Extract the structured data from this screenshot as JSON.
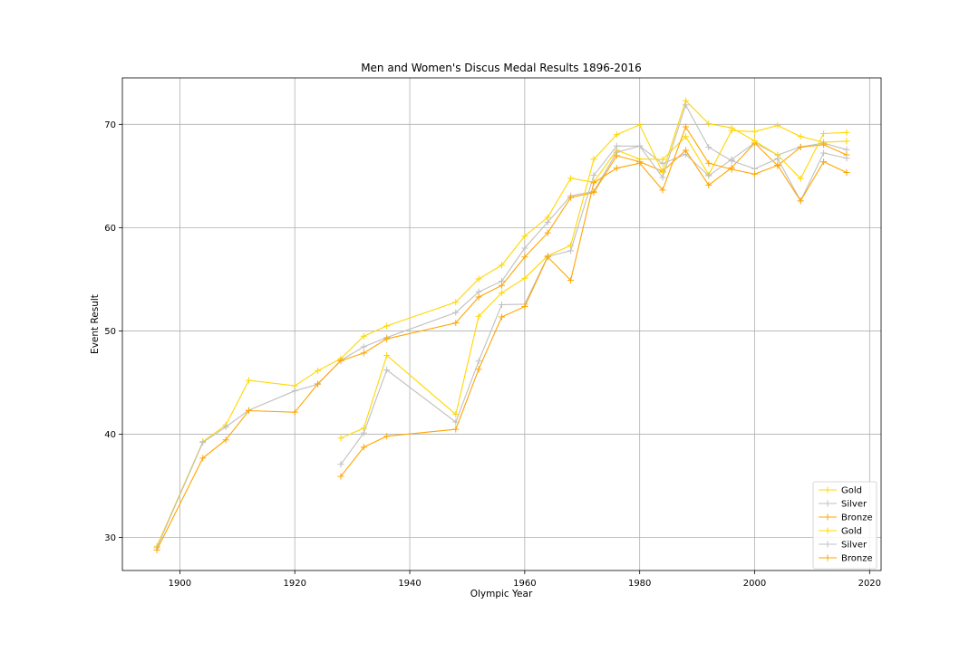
{
  "chart_data": {
    "type": "line",
    "title": "Men and Women's Discus Medal Results 1896-2016",
    "xlabel": "Olympic Year",
    "ylabel": "Event Result",
    "xlim": [
      1890,
      2022
    ],
    "ylim": [
      26.8,
      74.5
    ],
    "xticks": [
      1900,
      1920,
      1940,
      1960,
      1980,
      2000,
      2020
    ],
    "yticks": [
      30,
      40,
      50,
      60,
      70
    ],
    "grid": true,
    "legend_position": "bottom-right",
    "marker": "+",
    "series": [
      {
        "name": "Gold",
        "group": "Men",
        "color": "#FFD700",
        "x": [
          1896,
          1904,
          1908,
          1912,
          1920,
          1924,
          1928,
          1932,
          1936,
          1948,
          1952,
          1956,
          1960,
          1964,
          1968,
          1972,
          1976,
          1980,
          1984,
          1988,
          1992,
          1996,
          2000,
          2004,
          2008,
          2012,
          2016
        ],
        "y": [
          29.15,
          39.28,
          40.89,
          45.21,
          44.68,
          46.15,
          47.32,
          49.49,
          50.48,
          52.78,
          55.03,
          56.36,
          59.18,
          61.0,
          64.78,
          64.4,
          67.5,
          66.64,
          66.6,
          68.82,
          65.12,
          69.4,
          69.3,
          69.89,
          68.82,
          68.27,
          68.37
        ]
      },
      {
        "name": "Silver",
        "group": "Men",
        "color": "#C0C0C0",
        "x": [
          1896,
          1904,
          1908,
          1912,
          1920,
          1924,
          1928,
          1932,
          1936,
          1948,
          1952,
          1956,
          1960,
          1964,
          1968,
          1972,
          1976,
          1980,
          1984,
          1988,
          1992,
          1996,
          2000,
          2004,
          2008,
          2012,
          2016
        ],
        "y": [
          29.0,
          39.2,
          40.7,
          42.32,
          44.19,
          44.83,
          47.15,
          48.47,
          49.36,
          51.78,
          53.78,
          54.81,
          58.02,
          60.52,
          63.08,
          63.5,
          67.3,
          67.9,
          66.2,
          67.1,
          65.02,
          66.6,
          68.2,
          67.03,
          67.82,
          68.18,
          67.55
        ]
      },
      {
        "name": "Bronze",
        "group": "Men",
        "color": "#FFA500",
        "x": [
          1896,
          1904,
          1908,
          1912,
          1920,
          1924,
          1928,
          1932,
          1936,
          1948,
          1952,
          1956,
          1960,
          1964,
          1968,
          1972,
          1976,
          1980,
          1984,
          1988,
          1992,
          1996,
          2000,
          2004,
          2008,
          2012,
          2016
        ],
        "y": [
          28.78,
          37.68,
          39.45,
          42.28,
          42.13,
          44.87,
          47.11,
          47.85,
          49.23,
          50.77,
          53.28,
          54.4,
          57.16,
          59.49,
          62.92,
          63.4,
          66.96,
          66.38,
          65.46,
          67.48,
          64.12,
          65.8,
          68.19,
          66.0,
          67.79,
          68.03,
          67.05
        ]
      },
      {
        "name": "Gold",
        "group": "Women",
        "color": "#FFD700",
        "x": [
          1928,
          1932,
          1936,
          1948,
          1952,
          1956,
          1960,
          1964,
          1968,
          1972,
          1976,
          1980,
          1984,
          1988,
          1992,
          1996,
          2000,
          2004,
          2008,
          2012,
          2016
        ],
        "y": [
          39.62,
          40.58,
          47.63,
          41.92,
          51.42,
          53.69,
          55.1,
          57.27,
          58.28,
          66.62,
          69.0,
          69.96,
          65.36,
          72.3,
          70.06,
          69.66,
          68.4,
          67.02,
          64.74,
          69.11,
          69.21
        ]
      },
      {
        "name": "Silver",
        "group": "Women",
        "color": "#C0C0C0",
        "x": [
          1928,
          1932,
          1936,
          1948,
          1952,
          1956,
          1960,
          1964,
          1968,
          1972,
          1976,
          1980,
          1984,
          1988,
          1992,
          1996,
          2000,
          2004,
          2008,
          2012,
          2016
        ],
        "y": [
          37.08,
          40.12,
          46.22,
          41.17,
          47.08,
          52.54,
          52.59,
          57.21,
          57.76,
          65.06,
          67.9,
          67.9,
          64.86,
          71.88,
          67.78,
          66.48,
          65.7,
          66.68,
          62.59,
          67.22,
          66.73
        ]
      },
      {
        "name": "Bronze",
        "group": "Women",
        "color": "#FFA500",
        "x": [
          1928,
          1932,
          1936,
          1948,
          1952,
          1956,
          1960,
          1964,
          1968,
          1972,
          1976,
          1980,
          1984,
          1988,
          1992,
          1996,
          2000,
          2004,
          2008,
          2012,
          2016
        ],
        "y": [
          35.92,
          38.74,
          39.8,
          40.47,
          46.29,
          51.35,
          52.36,
          57.16,
          54.9,
          64.34,
          65.76,
          66.24,
          63.64,
          69.76,
          66.24,
          65.64,
          65.18,
          66.04,
          62.59,
          66.38,
          65.34
        ]
      }
    ]
  }
}
